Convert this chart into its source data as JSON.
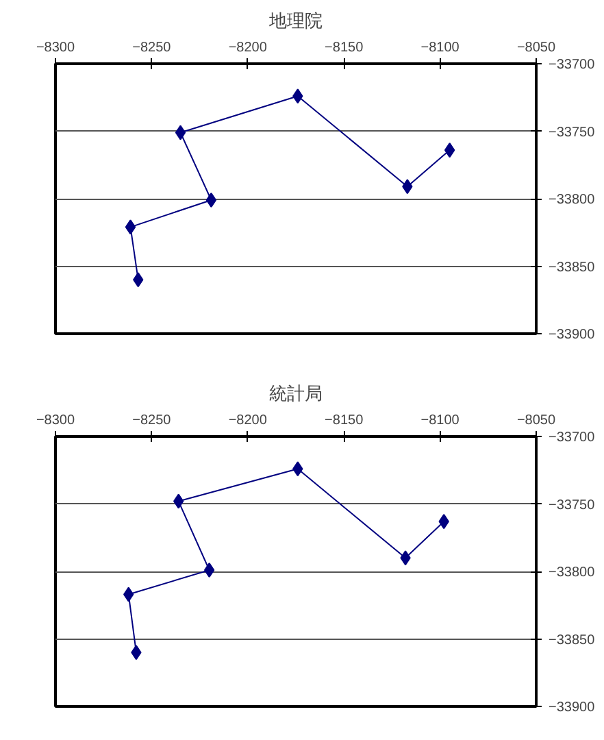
{
  "chart_data": [
    {
      "type": "line",
      "title": "地理院",
      "marker": "diamond",
      "line_style": "solid",
      "grid": "y",
      "xlim": [
        -8300,
        -8050
      ],
      "xticks": [
        -8300,
        -8250,
        -8200,
        -8150,
        -8100,
        -8050
      ],
      "ylim": [
        -33900,
        -33700
      ],
      "yticks": [
        -33900,
        -33850,
        -33800,
        -33750,
        -33700
      ],
      "series": [
        {
          "color": "#000080",
          "x": [
            -8257,
            -8261,
            -8219,
            -8235,
            -8174,
            -8117,
            -8095
          ],
          "values": [
            -33860,
            -33821,
            -33801,
            -33751,
            -33724,
            -33791,
            -33764
          ]
        }
      ]
    },
    {
      "type": "line",
      "title": "統計局",
      "marker": "diamond",
      "line_style": "solid",
      "grid": "y",
      "xlim": [
        -8300,
        -8050
      ],
      "xticks": [
        -8300,
        -8250,
        -8200,
        -8150,
        -8100,
        -8050
      ],
      "ylim": [
        -33900,
        -33700
      ],
      "yticks": [
        -33900,
        -33850,
        -33800,
        -33750,
        -33700
      ],
      "series": [
        {
          "color": "#000080",
          "x": [
            -8258,
            -8262,
            -8220,
            -8236,
            -8174,
            -8118,
            -8098
          ],
          "values": [
            -33860,
            -33817,
            -33799,
            -33748,
            -33724,
            -33790,
            -33763
          ]
        }
      ]
    }
  ]
}
